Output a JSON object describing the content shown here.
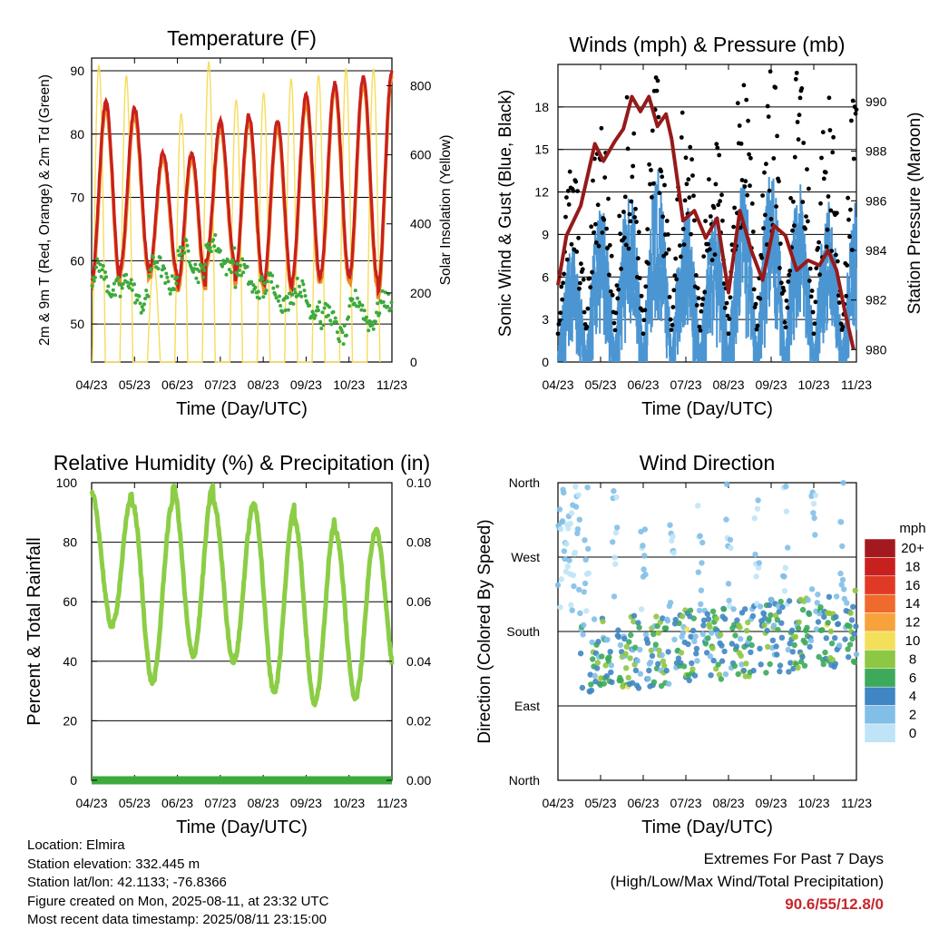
{
  "colors": {
    "temp_2m": "#c8201e",
    "temp_9m": "#f08a24",
    "dewpoint": "#3caa3c",
    "solar": "#f7dc5a",
    "wind": "#4b96d2",
    "gust": "#000000",
    "pressure": "#961a1a",
    "rh": "#8ccd46",
    "precip": "#3caa3c",
    "extremes": "#c8262c"
  },
  "footer": {
    "location": "Location: Elmira",
    "elevation": "Station elevation: 332.445 m",
    "latlon": "Station lat/lon: 42.1133; -76.8366",
    "created": "Figure created on Mon, 2025-08-11, at 23:32 UTC",
    "recent": "Most recent data timestamp: 2025/08/11 23:15:00",
    "extremes_title": "Extremes For Past 7 Days",
    "extremes_sub": "(High/Low/Max Wind/Total Precipitation)",
    "extremes_values": "90.6/55/12.8/0"
  },
  "chart_data": [
    {
      "type": "line",
      "title": "Temperature (F)",
      "xlabel": "Time (Day/UTC)",
      "ylabel": "2m & 9m T (Red, Orange) & 2m Td (Green)",
      "y2label": "Solar Insolation (Yellow)",
      "xticks": [
        "04/23",
        "05/23",
        "06/23",
        "07/23",
        "08/23",
        "09/23",
        "10/23",
        "11/23"
      ],
      "ylim": [
        44,
        92
      ],
      "yticks": [
        50,
        60,
        70,
        80,
        90
      ],
      "y2lim": [
        0,
        880
      ],
      "y2ticks": [
        0,
        200,
        400,
        600,
        800
      ],
      "grid": true,
      "daily_series": {
        "temp_high": [
          85,
          84,
          77,
          77,
          82,
          83,
          82,
          86,
          88,
          89,
          90
        ],
        "temp_low": [
          57,
          59,
          58,
          56,
          60,
          57,
          56,
          57,
          58,
          57,
          55
        ],
        "dewpoint_level": [
          57,
          55,
          58,
          60,
          61,
          57,
          55,
          54,
          50,
          52,
          52
        ],
        "solar_peak": [
          860,
          830,
          280,
          720,
          870,
          760,
          780,
          820,
          830,
          850,
          850
        ]
      }
    },
    {
      "type": "line",
      "title": "Winds (mph) & Pressure (mb)",
      "xlabel": "Time (Day/UTC)",
      "ylabel": "Sonic Wind & Gust (Blue, Black)",
      "y2label": "Station Pressure (Maroon)",
      "xticks": [
        "04/23",
        "05/23",
        "06/23",
        "07/23",
        "08/23",
        "09/23",
        "10/23",
        "11/23"
      ],
      "ylim": [
        0,
        21
      ],
      "yticks": [
        0,
        3,
        6,
        9,
        12,
        15,
        18
      ],
      "y2lim": [
        979.5,
        991.5
      ],
      "y2ticks": [
        980,
        982,
        984,
        986,
        988,
        990
      ],
      "grid": true,
      "daily_series": {
        "gust_peak": [
          12,
          16,
          17,
          19,
          16,
          14,
          19,
          19,
          19,
          16,
          17
        ],
        "wind_peak": [
          7,
          10,
          11,
          12,
          10,
          9,
          11,
          12,
          11,
          10,
          10
        ]
      },
      "pressure_points": [
        [
          0,
          982.6
        ],
        [
          0.3,
          984.6
        ],
        [
          0.8,
          985.8
        ],
        [
          1.3,
          988.3
        ],
        [
          1.6,
          987.6
        ],
        [
          2.0,
          988.4
        ],
        [
          2.3,
          988.9
        ],
        [
          2.6,
          990.2
        ],
        [
          2.9,
          989.6
        ],
        [
          3.2,
          990.2
        ],
        [
          3.5,
          989.0
        ],
        [
          3.8,
          989.5
        ],
        [
          4.0,
          988.5
        ],
        [
          4.4,
          985.2
        ],
        [
          4.8,
          985.6
        ],
        [
          5.2,
          984.5
        ],
        [
          5.6,
          985.3
        ],
        [
          6.0,
          982.3
        ],
        [
          6.4,
          985.6
        ],
        [
          6.8,
          984.0
        ],
        [
          7.2,
          982.8
        ],
        [
          7.6,
          985.0
        ],
        [
          8.0,
          984.6
        ],
        [
          8.4,
          983.2
        ],
        [
          8.8,
          983.6
        ],
        [
          9.2,
          983.4
        ],
        [
          9.5,
          984.0
        ],
        [
          9.8,
          983.2
        ],
        [
          10.1,
          981.5
        ],
        [
          10.4,
          980.0
        ]
      ]
    },
    {
      "type": "line",
      "title": "Relative Humidity (%) & Precipitation (in)",
      "xlabel": "Time (Day/UTC)",
      "ylabel": "Percent & Total Rainfall",
      "xticks": [
        "04/23",
        "05/23",
        "06/23",
        "07/23",
        "08/23",
        "09/23",
        "10/23",
        "11/23"
      ],
      "ylim": [
        0,
        100
      ],
      "yticks": [
        0,
        20,
        40,
        60,
        80,
        100
      ],
      "y2lim": [
        0,
        0.1
      ],
      "y2ticks": [
        "0.00",
        "0.02",
        "0.04",
        "0.06",
        "0.08",
        "0.10"
      ],
      "grid": true,
      "daily_series": {
        "rh_high": [
          96,
          93,
          99,
          93,
          92,
          87,
          84,
          84
        ],
        "rh_low": [
          52,
          33,
          42,
          40,
          30,
          26,
          28,
          35
        ]
      },
      "precip_total": 0.0
    },
    {
      "type": "scatter",
      "title": "Wind Direction",
      "xlabel": "Time (Day/UTC)",
      "ylabel": "Direction (Colored By Speed)",
      "xticks": [
        "04/23",
        "05/23",
        "06/23",
        "07/23",
        "08/23",
        "09/23",
        "10/23",
        "11/23"
      ],
      "yticks": [
        "North",
        "East",
        "South",
        "West",
        "North"
      ],
      "grid": true,
      "legend": {
        "title": "mph",
        "labels": [
          "20+",
          "18",
          "16",
          "14",
          "12",
          "10",
          "8",
          "6",
          "4",
          "2",
          "0"
        ],
        "colors": [
          "#a31a1e",
          "#c8201e",
          "#e03a26",
          "#ef6a2b",
          "#f7a23a",
          "#f3df5a",
          "#8ec743",
          "#3caa5a",
          "#3f86c2",
          "#82bfe8",
          "#bfe4f7"
        ]
      }
    }
  ]
}
